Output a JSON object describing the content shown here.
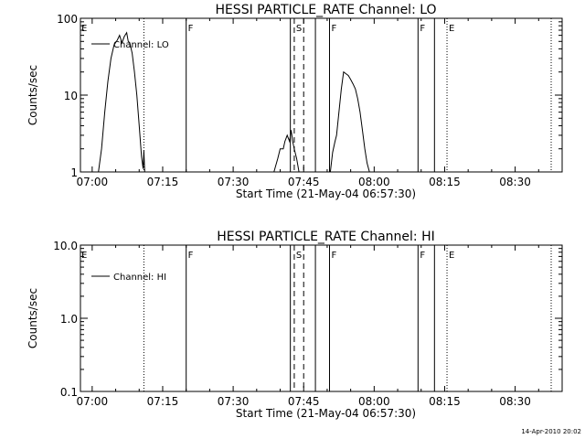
{
  "stamp": "14-Apr-2010 20:02",
  "chart_data": [
    {
      "type": "line",
      "title": "HESSI PARTICLE_RATE Channel: LO",
      "xlabel": "Start Time (21-May-04 06:57:30)",
      "ylabel": "Counts/sec",
      "yscale": "log",
      "xlim": [
        "06:57:30",
        "08:40:00"
      ],
      "ylim": [
        1,
        100
      ],
      "x_ticks": [
        "07:00",
        "07:15",
        "07:30",
        "07:45",
        "08:00",
        "08:15",
        "08:30"
      ],
      "y_ticks": [
        "1",
        "10",
        "100"
      ],
      "legend": {
        "placement": "top-left",
        "entries": [
          "Channel: LO"
        ]
      },
      "solid_markers": [
        {
          "time": "07:20:00",
          "label": "F"
        },
        {
          "time": "07:42:10",
          "label": ""
        },
        {
          "time": "07:47:30",
          "label": ""
        },
        {
          "time": "07:50:30",
          "label": "F"
        },
        {
          "time": "08:09:20",
          "label": "F"
        },
        {
          "time": "08:12:50",
          "label": ""
        }
      ],
      "dashed_markers": [
        {
          "time": "07:43:00",
          "label": "S"
        },
        {
          "time": "07:45:00",
          "label": ""
        }
      ],
      "dotted_markers": [
        {
          "time": "07:11:00",
          "label": ""
        },
        {
          "time": "08:15:30",
          "label": "E"
        },
        {
          "time": "08:37:40",
          "label": ""
        }
      ],
      "edge_label": "E",
      "series": [
        {
          "name": "Channel: LO",
          "segments": [
            [
              [
                "07:01:20",
                1.0
              ],
              [
                "07:02:00",
                2.0
              ],
              [
                "07:02:40",
                6.0
              ],
              [
                "07:03:20",
                15
              ],
              [
                "07:04:00",
                30
              ],
              [
                "07:04:40",
                45
              ],
              [
                "07:05:20",
                52
              ],
              [
                "07:05:50",
                60
              ],
              [
                "07:06:20",
                48
              ],
              [
                "07:06:50",
                58
              ],
              [
                "07:07:20",
                65
              ],
              [
                "07:07:40",
                50
              ],
              [
                "07:08:00",
                48
              ],
              [
                "07:08:30",
                35
              ],
              [
                "07:09:00",
                20
              ],
              [
                "07:09:30",
                10
              ],
              [
                "07:10:00",
                4.0
              ],
              [
                "07:10:30",
                1.6
              ],
              [
                "07:10:50",
                1.1
              ],
              [
                "07:11:00",
                1.9
              ],
              [
                "07:11:10",
                1.0
              ]
            ],
            [
              [
                "07:38:40",
                1.0
              ],
              [
                "07:39:30",
                1.5
              ],
              [
                "07:40:00",
                2.0
              ],
              [
                "07:40:40",
                2.0
              ],
              [
                "07:41:00",
                2.5
              ],
              [
                "07:41:30",
                3.0
              ],
              [
                "07:42:00",
                2.5
              ],
              [
                "07:42:20",
                3.5
              ],
              [
                "07:42:40",
                2.5
              ],
              [
                "07:43:00",
                2.0
              ],
              [
                "07:43:30",
                1.5
              ],
              [
                "07:44:00",
                1.0
              ]
            ],
            [
              [
                "07:50:40",
                1.0
              ],
              [
                "07:51:10",
                1.8
              ],
              [
                "07:51:40",
                2.5
              ],
              [
                "07:52:00",
                3.0
              ],
              [
                "07:52:30",
                6.0
              ],
              [
                "07:53:00",
                12
              ],
              [
                "07:53:30",
                20
              ],
              [
                "07:54:00",
                19
              ],
              [
                "07:54:30",
                18
              ],
              [
                "07:55:00",
                16
              ],
              [
                "07:55:30",
                14
              ],
              [
                "07:56:00",
                12
              ],
              [
                "07:56:30",
                9.0
              ],
              [
                "07:57:00",
                6.0
              ],
              [
                "07:57:30",
                3.5
              ],
              [
                "07:58:00",
                2.0
              ],
              [
                "07:58:30",
                1.3
              ],
              [
                "07:59:00",
                1.0
              ]
            ]
          ]
        }
      ]
    },
    {
      "type": "line",
      "title": "HESSI PARTICLE_RATE Channel: HI",
      "xlabel": "Start Time (21-May-04 06:57:30)",
      "ylabel": "Counts/sec",
      "yscale": "log",
      "xlim": [
        "06:57:30",
        "08:40:00"
      ],
      "ylim": [
        0.1,
        10
      ],
      "x_ticks": [
        "07:00",
        "07:15",
        "07:30",
        "07:45",
        "08:00",
        "08:15",
        "08:30"
      ],
      "y_ticks": [
        "0.1",
        "1.0",
        "10.0"
      ],
      "legend": {
        "placement": "top-left",
        "entries": [
          "Channel: HI"
        ]
      },
      "solid_markers": [
        {
          "time": "07:20:00",
          "label": "F"
        },
        {
          "time": "07:42:10",
          "label": ""
        },
        {
          "time": "07:47:30",
          "label": ""
        },
        {
          "time": "07:50:30",
          "label": "F"
        },
        {
          "time": "08:09:20",
          "label": "F"
        },
        {
          "time": "08:12:50",
          "label": ""
        }
      ],
      "dashed_markers": [
        {
          "time": "07:43:00",
          "label": "S"
        },
        {
          "time": "07:45:00",
          "label": ""
        }
      ],
      "dotted_markers": [
        {
          "time": "07:11:00",
          "label": ""
        },
        {
          "time": "08:15:30",
          "label": "E"
        },
        {
          "time": "08:37:40",
          "label": ""
        }
      ],
      "edge_label": "E",
      "series": [
        {
          "name": "Channel: HI",
          "segments": []
        }
      ]
    }
  ]
}
